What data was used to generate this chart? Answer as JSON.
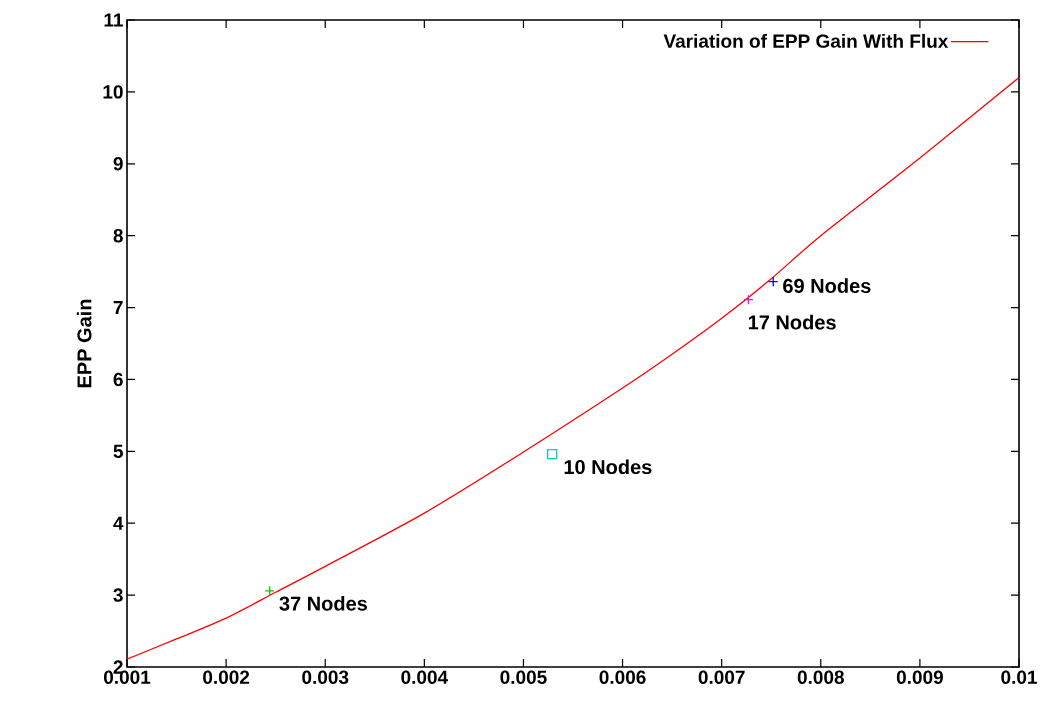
{
  "chart_data": {
    "type": "line",
    "ylabel": "EPP Gain",
    "legend": "top right",
    "grid": false,
    "xlim": [
      0.001,
      0.01
    ],
    "ylim": [
      2,
      11
    ],
    "xticks": [
      0.001,
      0.002,
      0.003,
      0.004,
      0.005,
      0.006,
      0.007,
      0.008,
      0.009,
      0.01
    ],
    "yticks": [
      2,
      3,
      4,
      5,
      6,
      7,
      8,
      9,
      10,
      11
    ],
    "series": [
      {
        "name": "Variation of EPP Gain With Flux",
        "color": "#ff0000",
        "marker": "none",
        "line_style": "solid",
        "x": [
          0.001,
          0.0015,
          0.002,
          0.0025,
          0.003,
          0.004,
          0.005,
          0.006,
          0.0065,
          0.007,
          0.0075,
          0.008,
          0.009,
          0.01
        ],
        "values": [
          2.11,
          2.39,
          2.68,
          3.04,
          3.4,
          4.14,
          4.99,
          5.88,
          6.35,
          6.85,
          7.4,
          8.0,
          9.08,
          10.2
        ]
      },
      {
        "type": "scatter",
        "color": "#00cc00",
        "marker": "cross",
        "x": [
          0.00244
        ],
        "values": [
          3.06
        ]
      },
      {
        "type": "scatter",
        "color": "#00cccc",
        "marker": "square",
        "x": [
          0.00529
        ],
        "values": [
          4.96
        ]
      },
      {
        "type": "scatter",
        "color": "#ff00ff",
        "marker": "cross",
        "x": [
          0.00727
        ],
        "values": [
          7.11
        ]
      },
      {
        "type": "scatter",
        "color": "#0000ff",
        "marker": "cross",
        "x": [
          0.00752
        ],
        "values": [
          7.36
        ]
      }
    ],
    "annotations": [
      {
        "text": "37 Nodes",
        "x": 0.00244,
        "y": 3.06
      },
      {
        "text": "10 Nodes",
        "x": 0.00529,
        "y": 4.96
      },
      {
        "text": "17 Nodes",
        "x": 0.00727,
        "y": 7.11
      },
      {
        "text": "69 Nodes",
        "x": 0.00752,
        "y": 7.36
      }
    ]
  }
}
